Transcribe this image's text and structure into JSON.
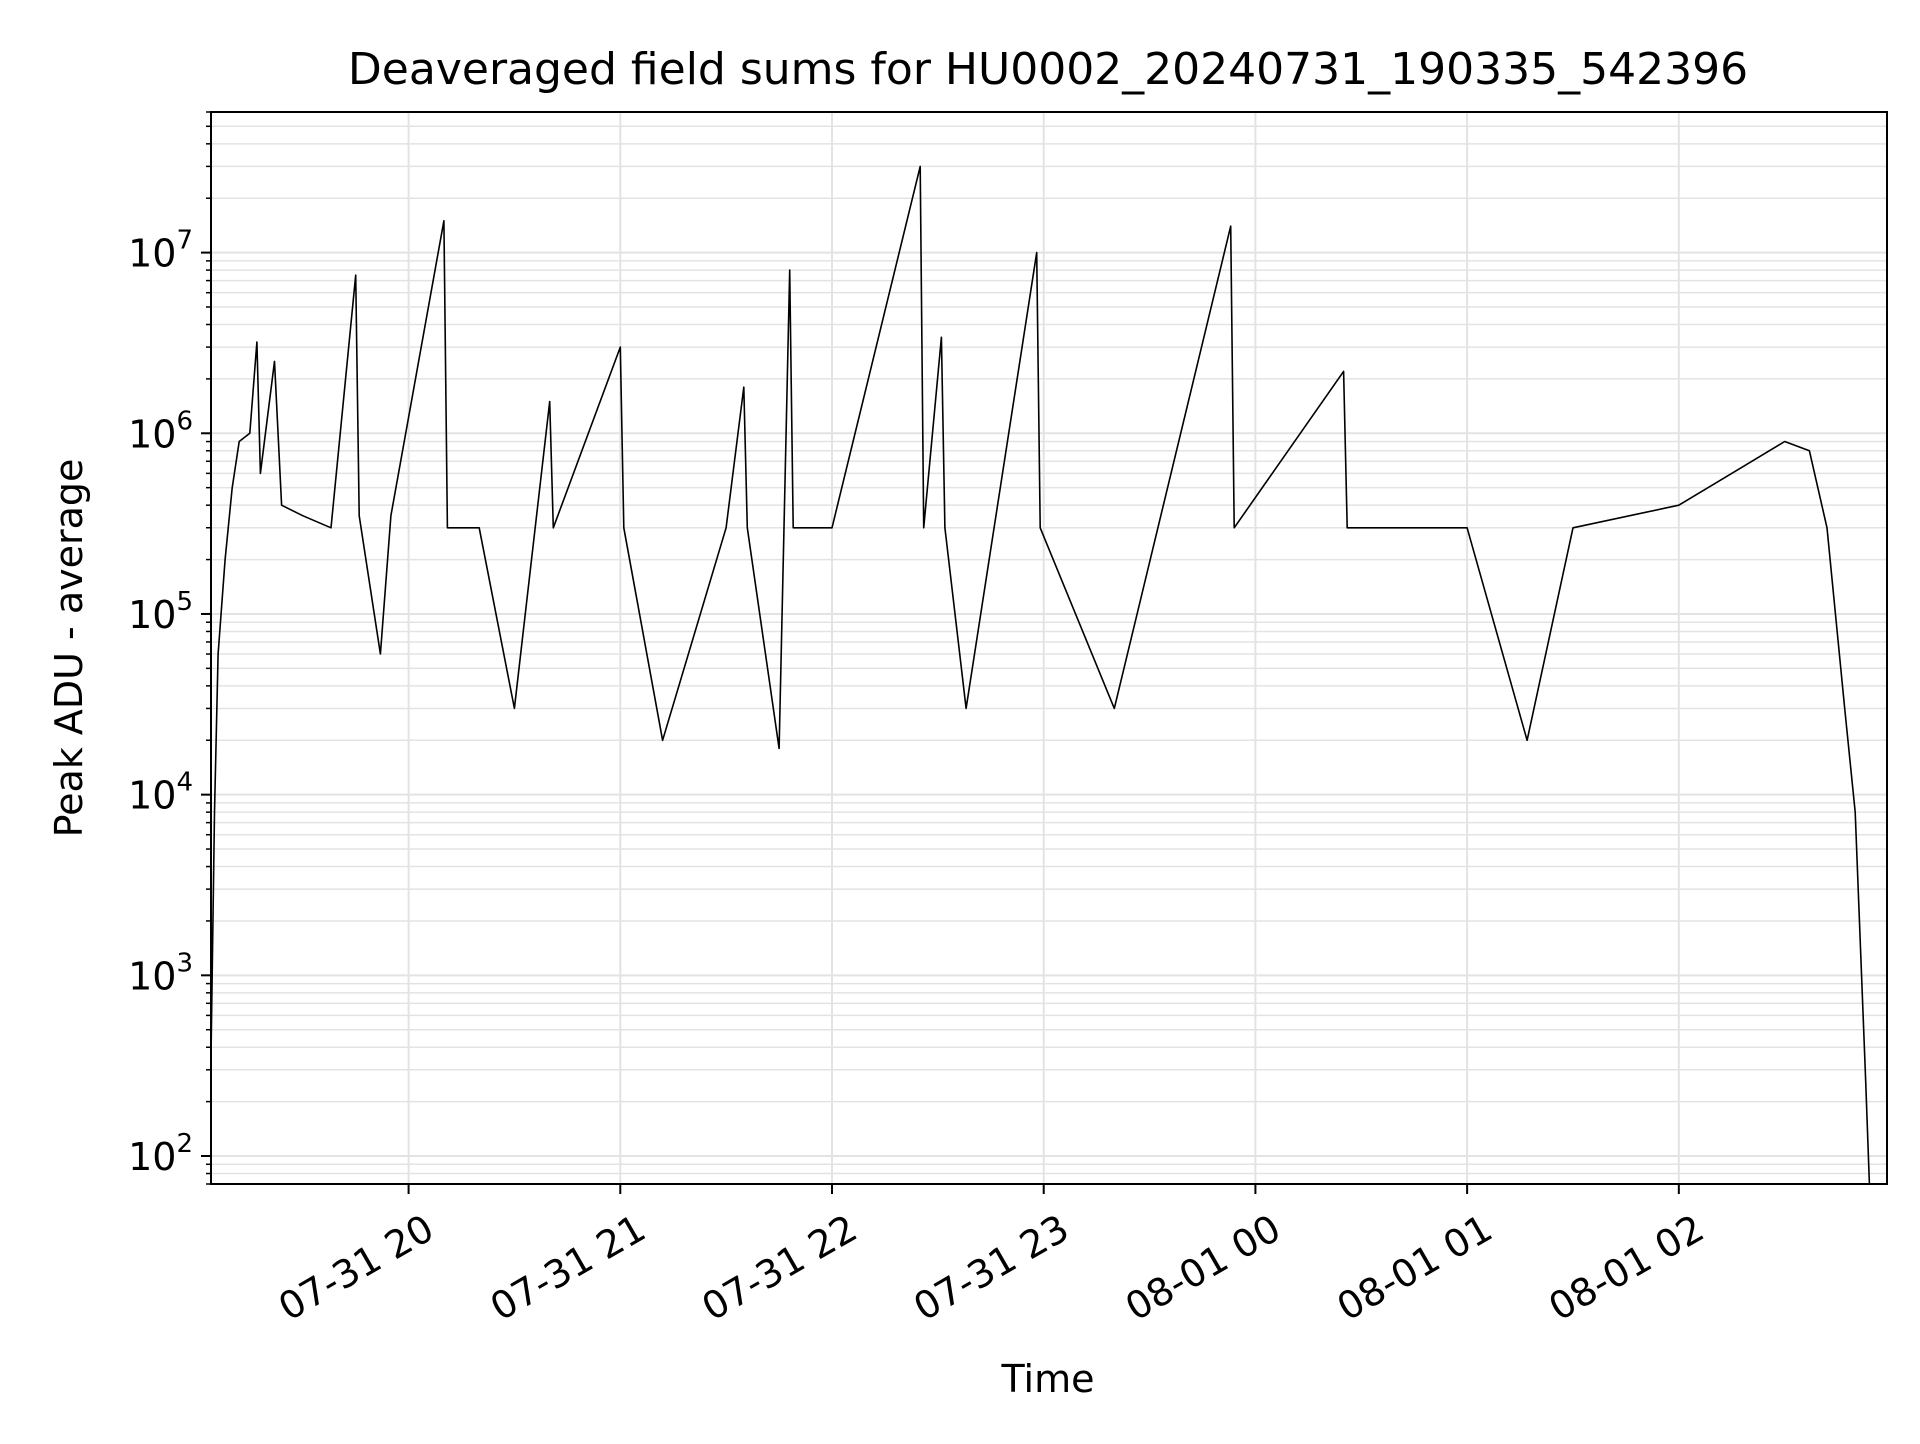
{
  "chart_data": {
    "type": "line",
    "title": "Deaveraged field sums for HU0002_20240731_190335_542396",
    "xlabel": "Time",
    "ylabel": "Peak ADU - average",
    "x_scale": "time",
    "y_scale": "log",
    "xlim": [
      "2024-07-31T19:04",
      "2024-08-01T02:59"
    ],
    "ylim": [
      70,
      60000000
    ],
    "x_ticks": [
      {
        "value": "2024-07-31T20:00",
        "label": "07-31 20"
      },
      {
        "value": "2024-07-31T21:00",
        "label": "07-31 21"
      },
      {
        "value": "2024-07-31T22:00",
        "label": "07-31 22"
      },
      {
        "value": "2024-07-31T23:00",
        "label": "07-31 23"
      },
      {
        "value": "2024-08-01T00:00",
        "label": "08-01 00"
      },
      {
        "value": "2024-08-01T01:00",
        "label": "08-01 01"
      },
      {
        "value": "2024-08-01T02:00",
        "label": "08-01 02"
      }
    ],
    "y_ticks": [
      {
        "value": 100,
        "base": "10",
        "exp": "2"
      },
      {
        "value": 1000,
        "base": "10",
        "exp": "3"
      },
      {
        "value": 10000,
        "base": "10",
        "exp": "4"
      },
      {
        "value": 100000,
        "base": "10",
        "exp": "5"
      },
      {
        "value": 1000000,
        "base": "10",
        "exp": "6"
      },
      {
        "value": 10000000,
        "base": "10",
        "exp": "7"
      }
    ],
    "grid": true,
    "line_color": "#000000",
    "grid_color": "#e3e3e3",
    "series": [
      {
        "points": [
          [
            "2024-07-31T19:04",
            350
          ],
          [
            "2024-07-31T19:05",
            8000
          ],
          [
            "2024-07-31T19:06",
            60000
          ],
          [
            "2024-07-31T19:08",
            200000
          ],
          [
            "2024-07-31T19:10",
            500000
          ],
          [
            "2024-07-31T19:12",
            900000
          ],
          [
            "2024-07-31T19:15",
            1000000
          ],
          [
            "2024-07-31T19:17",
            3200000
          ],
          [
            "2024-07-31T19:18",
            600000
          ],
          [
            "2024-07-31T19:22",
            2500000
          ],
          [
            "2024-07-31T19:24",
            400000
          ],
          [
            "2024-07-31T19:30",
            350000
          ],
          [
            "2024-07-31T19:38",
            300000
          ],
          [
            "2024-07-31T19:45",
            7500000
          ],
          [
            "2024-07-31T19:46",
            350000
          ],
          [
            "2024-07-31T19:52",
            60000
          ],
          [
            "2024-07-31T19:55",
            350000
          ],
          [
            "2024-07-31T20:10",
            15000000
          ],
          [
            "2024-07-31T20:11",
            300000
          ],
          [
            "2024-07-31T20:20",
            300000
          ],
          [
            "2024-07-31T20:30",
            30000
          ],
          [
            "2024-07-31T20:40",
            1500000
          ],
          [
            "2024-07-31T20:41",
            300000
          ],
          [
            "2024-07-31T21:00",
            3000000
          ],
          [
            "2024-07-31T21:01",
            300000
          ],
          [
            "2024-07-31T21:12",
            20000
          ],
          [
            "2024-07-31T21:30",
            300000
          ],
          [
            "2024-07-31T21:35",
            1800000
          ],
          [
            "2024-07-31T21:36",
            300000
          ],
          [
            "2024-07-31T21:45",
            18000
          ],
          [
            "2024-07-31T21:48",
            8000000
          ],
          [
            "2024-07-31T21:49",
            300000
          ],
          [
            "2024-07-31T22:00",
            300000
          ],
          [
            "2024-07-31T22:25",
            30000000
          ],
          [
            "2024-07-31T22:26",
            300000
          ],
          [
            "2024-07-31T22:31",
            3400000
          ],
          [
            "2024-07-31T22:32",
            300000
          ],
          [
            "2024-07-31T22:38",
            30000
          ],
          [
            "2024-07-31T22:58",
            10000000
          ],
          [
            "2024-07-31T22:59",
            300000
          ],
          [
            "2024-07-31T23:20",
            30000
          ],
          [
            "2024-07-31T23:53",
            14000000
          ],
          [
            "2024-07-31T23:54",
            300000
          ],
          [
            "2024-08-01T00:25",
            2200000
          ],
          [
            "2024-08-01T00:26",
            300000
          ],
          [
            "2024-08-01T01:00",
            300000
          ],
          [
            "2024-08-01T01:17",
            20000
          ],
          [
            "2024-08-01T01:30",
            300000
          ],
          [
            "2024-08-01T02:00",
            400000
          ],
          [
            "2024-08-01T02:15",
            600000
          ],
          [
            "2024-08-01T02:30",
            900000
          ],
          [
            "2024-08-01T02:37",
            800000
          ],
          [
            "2024-08-01T02:42",
            300000
          ],
          [
            "2024-08-01T02:47",
            30000
          ],
          [
            "2024-08-01T02:50",
            8000
          ],
          [
            "2024-08-01T02:53",
            250
          ],
          [
            "2024-08-01T02:54",
            70
          ]
        ]
      }
    ]
  }
}
